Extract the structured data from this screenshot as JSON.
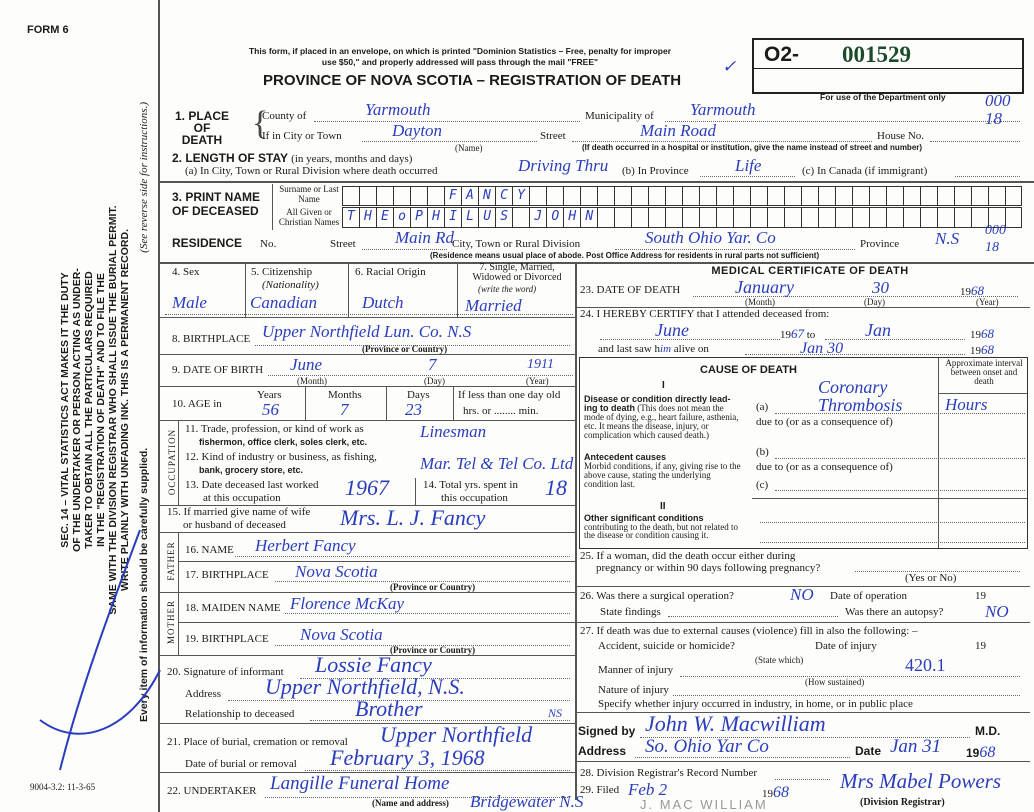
{
  "header": {
    "form_number": "FORM 6",
    "notice_line1": "This form, if placed in an envelope, on which is printed \"Dominion Statistics – Free, penalty for improper",
    "notice_line2": "use $50,\" and properly addressed will pass through the mail \"FREE\"",
    "title": "PROVINCE OF NOVA SCOTIA – REGISTRATION OF DEATH",
    "registration_prefix": "O2-",
    "registration_number": "001529",
    "department_only": "For use of the Department only",
    "checkmark": "✓",
    "dept_code": "000 18",
    "print_code": "9004-3.2: 11-3-65"
  },
  "margin": {
    "lines": [
      "SEC. 14 – VITAL STATISTICS ACT MAKES IT THE DUTY",
      "OF THE UNDERTAKER OR PERSON ACTING AS UNDER-",
      "TAKER TO OBTAIN ALL THE PARTICULARS REQUIRED",
      "IN THE \"REGISTRATION OF DEATH\" AND TO FILE THE",
      "SAME WITH THE DIVISION REGISTRAR WHO SHALL ISSUE THE BURIAL PERMIT.",
      "WRITE PLAINLY WITH UNFADING INK. THIS IS A PERMANENT RECORD."
    ],
    "every_item": "Every item of information should be carefully supplied.",
    "see_reverse": "(See reverse side for instructions.)"
  },
  "place_of_death": {
    "label": "1. PLACE OF DEATH",
    "county_label": "County of",
    "county": "Yarmouth",
    "municipality_label": "Municipality of",
    "municipality": "Yarmouth",
    "city_label": "If in City or Town",
    "city": "Dayton",
    "name_hint": "(Name)",
    "street_label": "Street",
    "street": "Main Road",
    "house_label": "House No.",
    "house_no": "18",
    "hospital_note": "(If death occurred in a hospital or institution, give the name instead of street and number)"
  },
  "length_of_stay": {
    "label": "2. LENGTH OF STAY",
    "hint": "(in years, months and days)",
    "a_label": "(a) In City, Town or Rural Division where death occurred",
    "a_value": "Driving Thru",
    "b_label": "(b) In Province",
    "b_value": "Life",
    "c_label": "(c) In Canada (if immigrant)"
  },
  "name": {
    "label": "3. PRINT NAME OF DECEASED",
    "surname_label": "Surname or Last Name",
    "surname": "FANCY",
    "given_label": "All Given or Christian Names",
    "given": "THEoPHILUS JOHN"
  },
  "residence": {
    "label": "RESIDENCE",
    "no_label": "No.",
    "street_label": "Street",
    "street": "Main Rd",
    "city_label": "City, Town or Rural Division",
    "city": "South Ohio Yar. Co",
    "province_label": "Province",
    "province": "N.S",
    "code": "000 18",
    "note": "(Residence means usual place of abode. Post Office Address for residents in rural parts not sufficient)"
  },
  "personal": {
    "sex_label": "4. Sex",
    "sex": "Male",
    "citizenship_label": "5. Citizenship",
    "citizenship_hint": "(Nationality)",
    "citizenship": "Canadian",
    "racial_label": "6. Racial Origin",
    "racial": "Dutch",
    "marital_label": "7. Single, Married, Widowed or Divorced",
    "marital_hint": "(write the word)",
    "marital": "Married",
    "birthplace_label": "8. BIRTHPLACE",
    "birthplace": "Upper Northfield Lun. Co. N.S",
    "province_hint": "(Province or Country)",
    "dob_label": "9. DATE OF BIRTH",
    "dob_month": "June",
    "dob_day": "7",
    "dob_year": "1911",
    "month_hint": "(Month)",
    "day_hint": "(Day)",
    "year_hint": "(Year)",
    "age_label": "10. AGE in",
    "years_label": "Years",
    "months_label": "Months",
    "days_label": "Days",
    "age_years": "56",
    "age_months": "7",
    "age_days": "23",
    "less_day_label": "If less than one day old",
    "hrs_min": "hrs. or ........ min."
  },
  "occupation": {
    "side_label": "OCCUPATION",
    "q11": "11. Trade, profession, or kind of work as",
    "q11b": "fishermon, office clerk, soles clerk, etc.",
    "trade": "Linesman",
    "q12": "12. Kind of industry or business, as fishing,",
    "q12b": "bank, grocery store, etc.",
    "industry": "Mar. Tel & Tel Co. Ltd",
    "q13": "13. Date deceased last worked",
    "q13b": "at this occupation",
    "last_worked": "1967",
    "q14": "14. Total yrs. spent in",
    "q14b": "this occupation",
    "total_years": "18",
    "q15": "15. If married give name of wife",
    "q15b": "or husband of deceased",
    "spouse": "Mrs. L. J. Fancy"
  },
  "parents": {
    "father_label": "FATHER",
    "mother_label": "MOTHER",
    "q16": "16. NAME",
    "father_name": "Herbert Fancy",
    "q17": "17. BIRTHPLACE",
    "father_birthplace": "Nova Scotia",
    "q18": "18. MAIDEN NAME",
    "mother_name": "Florence McKay",
    "q19": "19. BIRTHPLACE",
    "mother_birthplace": "Nova Scotia"
  },
  "informant": {
    "q20": "20. Signature of informant",
    "signature": "Lossie Fancy",
    "address_label": "Address",
    "address": "Upper Northfield, N.S.",
    "relationship_label": "Relationship to deceased",
    "relationship": "Brother"
  },
  "burial": {
    "q21": "21. Place of burial, cremation or removal",
    "place": "Upper Northfield",
    "date_label": "Date of burial or removal",
    "date": "February 3, 1968",
    "q22": "22. UNDERTAKER",
    "undertaker": "Langille Funeral Home",
    "undertaker_address": "Bridgewater N.S",
    "name_address_hint": "(Name and address)"
  },
  "medical": {
    "title": "MEDICAL CERTIFICATE OF DEATH",
    "q23": "23. DATE OF DEATH",
    "death_month": "January",
    "death_day": "30",
    "death_year_prefix": "19",
    "death_year": "68",
    "q24": "24. I HEREBY CERTIFY that I attended deceased from:",
    "from_month": "June",
    "from_year_prefix": "19",
    "from_year": "67",
    "to_label": "to",
    "to_month": "Jan",
    "to_year_prefix": "19",
    "to_year": "68",
    "last_saw_label": "and last saw h",
    "last_saw_pronoun": "im",
    "alive_on": "alive on",
    "last_saw_date": "Jan 30",
    "last_saw_year_prefix": "19",
    "last_saw_year": "68",
    "cause_title": "CAUSE OF DEATH",
    "part1": "I",
    "part2": "II",
    "interval_header": "Approximate interval between onset and death",
    "direct_bold": "Disease or condition directly lead-ing to death",
    "direct_text": "(This does not mean the mode of dying, e.g., heart failure, asthenia, etc. It means the disease, injury, or complication which caused death.)",
    "a_label": "(a)",
    "b_label": "(b)",
    "c_label": "(c)",
    "due_to": "due to (or as a consequence of)",
    "cause_a": "Coronary Thrombosis",
    "interval_a": "Hours",
    "antecedent_bold": "Antecedent causes",
    "antecedent_text": "Morbid conditions, if any, giving rise to the above cause, stating the underlying condition last.",
    "other_bold": "Other significant conditions",
    "other_text": "contributing to the death, but not related to the disease or condition causing it."
  },
  "questions": {
    "q25": "25. If a woman, did the death occur either during",
    "q25b": "pregnancy or within 90 days following pregnancy?",
    "yes_no_hint": "(Yes or No)",
    "q26": "26. Was there a surgical operation?",
    "operation": "NO",
    "date_op_label": "Date of operation",
    "year_prefix": "19",
    "findings_label": "State findings",
    "autopsy_label": "Was there an autopsy?",
    "autopsy": "NO",
    "q27": "27. If death was due to external causes (violence) fill in also the following: –",
    "accident_label": "Accident, suicide or homicide?",
    "state_which": "(State which)",
    "date_injury_label": "Date of injury",
    "manner_label": "Manner of injury",
    "manner_code": "420.1",
    "how_sustained": "(How sustained)",
    "nature_label": "Nature of injury",
    "specify_label": "Specify whether injury occurred in industry, in home, or in public place"
  },
  "signature": {
    "signed_label": "Signed by",
    "signed": "John W. Macwilliam",
    "md": "M.D.",
    "ns_mark": "NS",
    "address_label": "Address",
    "address": "So. Ohio Yar Co",
    "date_label": "Date",
    "date": "Jan 31",
    "year_prefix": "19",
    "year": "68",
    "q28": "28. Division Registrar's Record Number",
    "q29": "29. Filed",
    "filed": "Feb 2",
    "filed_year_prefix": "19",
    "filed_year": "68",
    "registrar": "Mrs Mabel Powers",
    "registrar_hint": "(Division Registrar)",
    "stamp": "J. MAC WILLIAM"
  },
  "colors": {
    "ink": "#2a3dbd",
    "number": "#1d4a2a",
    "print": "#1a1a1a"
  }
}
